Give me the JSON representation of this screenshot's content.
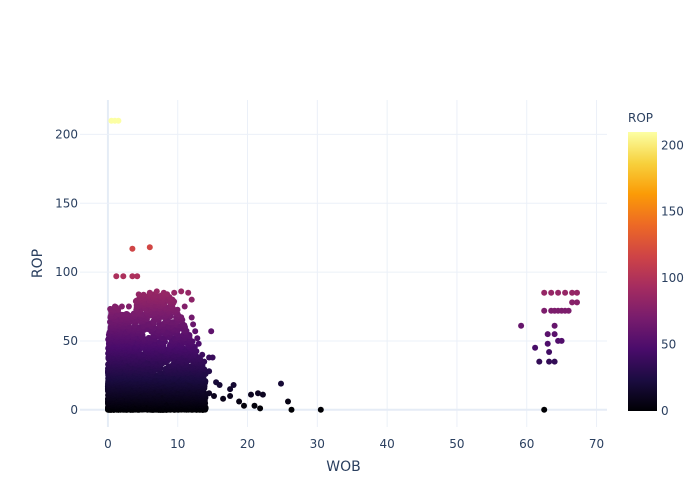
{
  "chart_data": {
    "type": "scatter",
    "title": "",
    "xlabel": "WOB",
    "ylabel": "ROP",
    "xlim": [
      -4,
      71.5
    ],
    "ylim": [
      -12.5,
      225
    ],
    "xticks": [
      0,
      10,
      20,
      30,
      40,
      50,
      60,
      70
    ],
    "yticks": [
      0,
      50,
      100,
      150,
      200
    ],
    "grid": true,
    "colorscale": "Inferno",
    "colorbar": {
      "title": "ROP",
      "range": [
        0,
        210
      ],
      "ticks": [
        0,
        50,
        100,
        150,
        200
      ],
      "colors": [
        "#000004",
        "#1b0c41",
        "#4a0c6b",
        "#781c6d",
        "#a52c60",
        "#cf4446",
        "#ed6925",
        "#fb9b06",
        "#f7d13d",
        "#fcffa4"
      ]
    },
    "dense_region": {
      "description": "dense cluster of points",
      "x_range": [
        0,
        14
      ],
      "y_range": [
        0,
        86
      ]
    },
    "points": [
      {
        "x": 0.5,
        "y": 210
      },
      {
        "x": 1.0,
        "y": 210
      },
      {
        "x": 1.5,
        "y": 210
      },
      {
        "x": 3.5,
        "y": 117
      },
      {
        "x": 6.0,
        "y": 118
      },
      {
        "x": 1.2,
        "y": 97
      },
      {
        "x": 2.2,
        "y": 97
      },
      {
        "x": 3.5,
        "y": 97
      },
      {
        "x": 4.2,
        "y": 97
      },
      {
        "x": 1.0,
        "y": 75
      },
      {
        "x": 2.0,
        "y": 75
      },
      {
        "x": 3.0,
        "y": 75
      },
      {
        "x": 5.0,
        "y": 80
      },
      {
        "x": 6.0,
        "y": 85
      },
      {
        "x": 7.0,
        "y": 86
      },
      {
        "x": 8.0,
        "y": 85
      },
      {
        "x": 9.5,
        "y": 85
      },
      {
        "x": 10.5,
        "y": 86
      },
      {
        "x": 11.5,
        "y": 85
      },
      {
        "x": 12.0,
        "y": 80
      },
      {
        "x": 11.0,
        "y": 75
      },
      {
        "x": 12.0,
        "y": 67
      },
      {
        "x": 12.2,
        "y": 62
      },
      {
        "x": 12.5,
        "y": 57
      },
      {
        "x": 14.8,
        "y": 57
      },
      {
        "x": 12.8,
        "y": 52
      },
      {
        "x": 13.0,
        "y": 48
      },
      {
        "x": 13.5,
        "y": 40
      },
      {
        "x": 14.5,
        "y": 38
      },
      {
        "x": 15.0,
        "y": 38
      },
      {
        "x": 13.8,
        "y": 35
      },
      {
        "x": 14.5,
        "y": 28
      },
      {
        "x": 13.0,
        "y": 25
      },
      {
        "x": 15.5,
        "y": 20
      },
      {
        "x": 16.0,
        "y": 18
      },
      {
        "x": 17.5,
        "y": 15
      },
      {
        "x": 18.0,
        "y": 18
      },
      {
        "x": 14.5,
        "y": 12
      },
      {
        "x": 15.2,
        "y": 10
      },
      {
        "x": 16.5,
        "y": 8
      },
      {
        "x": 17.5,
        "y": 10
      },
      {
        "x": 18.8,
        "y": 6
      },
      {
        "x": 19.5,
        "y": 3
      },
      {
        "x": 20.5,
        "y": 11
      },
      {
        "x": 21.5,
        "y": 12
      },
      {
        "x": 22.2,
        "y": 11
      },
      {
        "x": 21.0,
        "y": 3
      },
      {
        "x": 21.8,
        "y": 1
      },
      {
        "x": 24.8,
        "y": 19
      },
      {
        "x": 25.8,
        "y": 6
      },
      {
        "x": 26.3,
        "y": 0
      },
      {
        "x": 30.5,
        "y": 0
      },
      {
        "x": 59.2,
        "y": 61
      },
      {
        "x": 61.2,
        "y": 45
      },
      {
        "x": 61.8,
        "y": 35
      },
      {
        "x": 62.5,
        "y": 85
      },
      {
        "x": 62.5,
        "y": 0
      },
      {
        "x": 62.5,
        "y": 72
      },
      {
        "x": 63.0,
        "y": 55
      },
      {
        "x": 63.0,
        "y": 48
      },
      {
        "x": 63.2,
        "y": 42
      },
      {
        "x": 63.2,
        "y": 35
      },
      {
        "x": 63.5,
        "y": 85
      },
      {
        "x": 63.5,
        "y": 72
      },
      {
        "x": 64.0,
        "y": 72
      },
      {
        "x": 64.0,
        "y": 61
      },
      {
        "x": 64.0,
        "y": 55
      },
      {
        "x": 64.0,
        "y": 35
      },
      {
        "x": 64.5,
        "y": 85
      },
      {
        "x": 64.5,
        "y": 72
      },
      {
        "x": 64.5,
        "y": 50
      },
      {
        "x": 65.0,
        "y": 72
      },
      {
        "x": 65.0,
        "y": 50
      },
      {
        "x": 65.5,
        "y": 85
      },
      {
        "x": 65.5,
        "y": 72
      },
      {
        "x": 66.0,
        "y": 72
      },
      {
        "x": 66.5,
        "y": 85
      },
      {
        "x": 66.5,
        "y": 78
      },
      {
        "x": 67.2,
        "y": 85
      },
      {
        "x": 67.2,
        "y": 78
      }
    ]
  }
}
